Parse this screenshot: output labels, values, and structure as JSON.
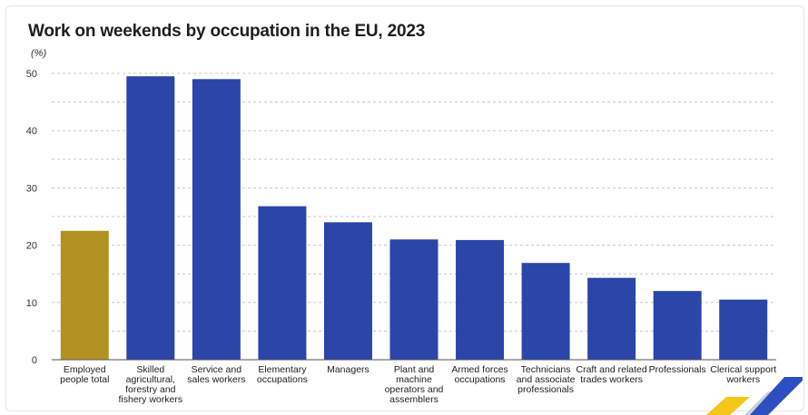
{
  "chart_data": {
    "type": "bar",
    "title": "Work on weekends by occupation in the EU, 2023",
    "ylabel": "(%)",
    "xlabel": "",
    "ylim": [
      0,
      50
    ],
    "yticks": [
      0,
      10,
      20,
      30,
      40,
      50
    ],
    "grid": true,
    "categories": [
      [
        "Employed",
        "people total"
      ],
      [
        "Skilled",
        "agricultural,",
        "forestry and",
        "fishery workers"
      ],
      [
        "Service and",
        "sales workers"
      ],
      [
        "Elementary",
        "occupations"
      ],
      [
        "Managers"
      ],
      [
        "Plant and",
        "machine",
        "operators and",
        "assemblers"
      ],
      [
        "Armed forces",
        "occupations"
      ],
      [
        "Technicians",
        "and associate",
        "professionals"
      ],
      [
        "Craft and related",
        "trades workers"
      ],
      [
        "Professionals"
      ],
      [
        "Clerical support",
        "workers"
      ]
    ],
    "values": [
      22.5,
      49.5,
      49.0,
      26.8,
      24.0,
      21.0,
      20.9,
      16.9,
      14.3,
      12.0,
      10.5
    ],
    "colors": {
      "highlight": "#b29223",
      "default": "#2b45a8",
      "grid": "#c8c8c8",
      "axis": "#555555"
    }
  }
}
